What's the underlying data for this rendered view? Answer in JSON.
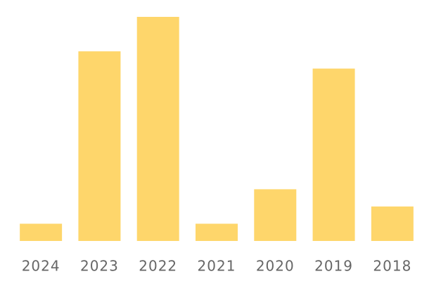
{
  "chart_data": {
    "type": "bar",
    "categories": [
      "2024",
      "2023",
      "2022",
      "2021",
      "2020",
      "2019",
      "2018"
    ],
    "values": [
      1,
      11,
      13,
      1,
      3,
      10,
      2
    ],
    "color": "#fed66b",
    "ylim": [
      0,
      13
    ]
  }
}
